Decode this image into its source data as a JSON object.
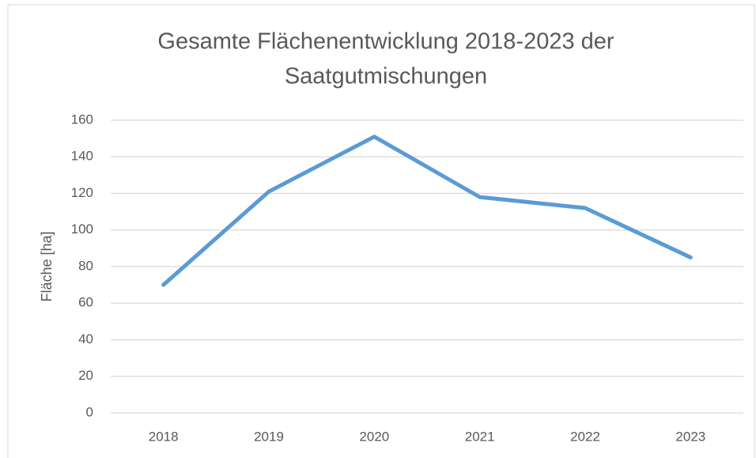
{
  "chart_data": {
    "type": "line",
    "title": [
      "Gesamte Flächenentwicklung 2018-2023 der",
      "Saatgutmischungen"
    ],
    "y_label": "Fläche [ha]",
    "categories": [
      "2018",
      "2019",
      "2020",
      "2021",
      "2022",
      "2023"
    ],
    "series": [
      {
        "name": "Fläche",
        "color": "#5b9bd5",
        "values": [
          70,
          121,
          151,
          118,
          112,
          85
        ]
      }
    ],
    "ylim": [
      0,
      160
    ],
    "yticks": [
      0,
      20,
      40,
      60,
      80,
      100,
      120,
      140,
      160
    ],
    "grid": true
  }
}
